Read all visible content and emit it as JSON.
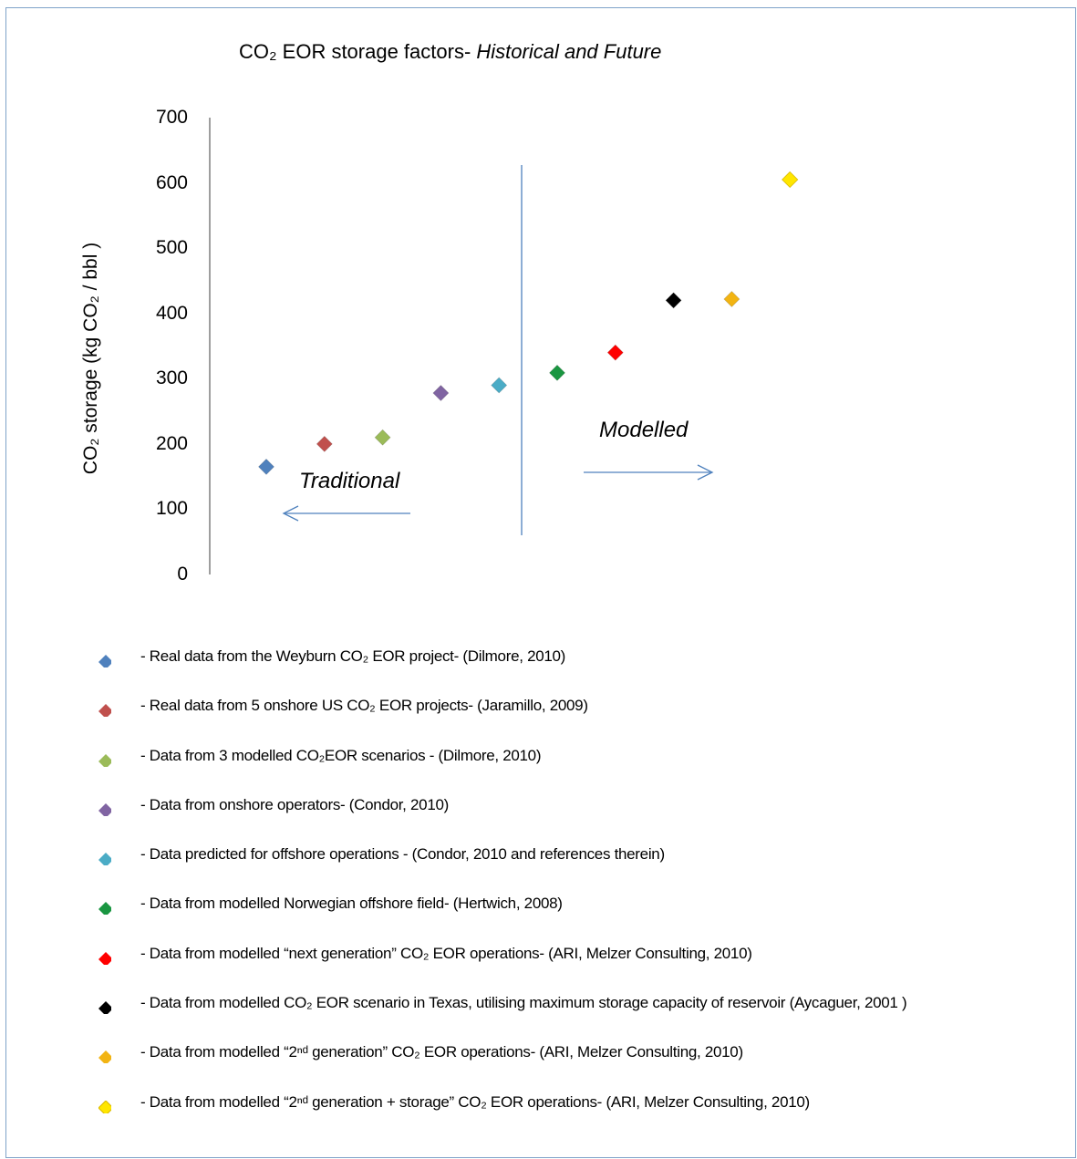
{
  "title": {
    "part1": "CO₂ EOR storage factors- ",
    "part2": "Historical and Future"
  },
  "chart_data": {
    "type": "scatter",
    "title": "CO₂ EOR storage factors- Historical and Future",
    "xlabel": "",
    "ylabel": "CO₂ storage (kg CO₂ / bbl )",
    "ylim": [
      0,
      700
    ],
    "yticks": [
      "0",
      "100",
      "200",
      "300",
      "400",
      "500",
      "600",
      "700"
    ],
    "grid": false,
    "legend_position": "bottom",
    "points": [
      {
        "x": 1,
        "y": 165,
        "color": "#4f81bd"
      },
      {
        "x": 2,
        "y": 200,
        "color": "#c0504d"
      },
      {
        "x": 3,
        "y": 210,
        "color": "#9bbb59"
      },
      {
        "x": 4,
        "y": 278,
        "color": "#8064a2"
      },
      {
        "x": 5,
        "y": 290,
        "color": "#4bacc6"
      },
      {
        "x": 6,
        "y": 309,
        "color": "#1a9641"
      },
      {
        "x": 7,
        "y": 340,
        "color": "#ff0000"
      },
      {
        "x": 8,
        "y": 420,
        "color": "#000000"
      },
      {
        "x": 9,
        "y": 422,
        "color": "#f2b413"
      },
      {
        "x": 10,
        "y": 605,
        "color": "#ffe600"
      }
    ],
    "annotations": {
      "traditional": "Traditional",
      "modelled": "Modelled"
    },
    "legend": [
      {
        "label": "- Real data from the Weyburn CO₂ EOR project- (Dilmore, 2010)",
        "color": "#4f81bd"
      },
      {
        "label": "- Real data from 5 onshore US CO₂ EOR projects- (Jaramillo, 2009)",
        "color": "#c0504d"
      },
      {
        "label": "- Data from 3 modelled CO₂EOR scenarios - (Dilmore, 2010)",
        "color": "#9bbb59"
      },
      {
        "label": "- Data from onshore operators- (Condor, 2010)",
        "color": "#8064a2"
      },
      {
        "label": "- Data predicted for offshore operations - (Condor,  2010 and references therein)",
        "color": "#4bacc6"
      },
      {
        "label": "- Data from modelled Norwegian offshore field- (Hertwich, 2008)",
        "color": "#1a9641"
      },
      {
        "label": "- Data from modelled “next generation” CO₂ EOR operations- (ARI, Melzer Consulting, 2010)",
        "color": "#ff0000"
      },
      {
        "label": "- Data from modelled CO₂ EOR scenario in Texas, utilising maximum storage capacity of reservoir (Aycaguer, 2001 )",
        "color": "#000000"
      },
      {
        "label": "- Data from modelled “2ⁿᵈ generation” CO₂ EOR operations- (ARI, Melzer Consulting, 2010)",
        "color": "#f2b413"
      },
      {
        "label": "- Data from modelled “2ⁿᵈ generation + storage” CO₂ EOR operations- (ARI, Melzer Consulting, 2010)",
        "color": "#ffe600"
      }
    ]
  }
}
